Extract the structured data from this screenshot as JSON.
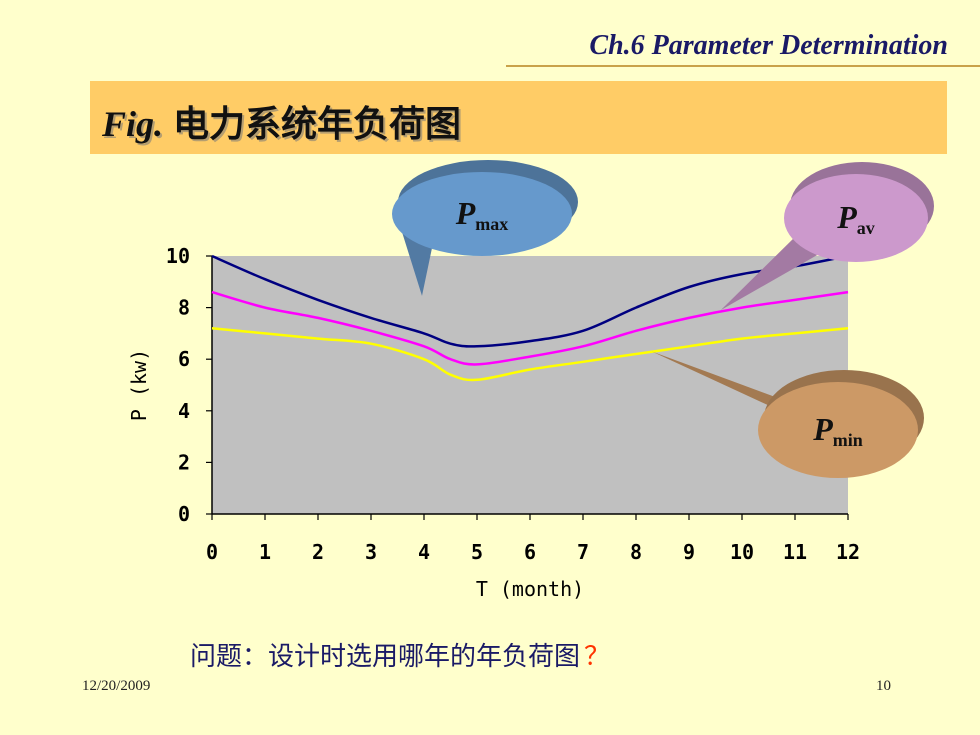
{
  "header": {
    "title": "Ch.6  Parameter Determination"
  },
  "title_band": {
    "fig": "Fig.",
    "title_zh": "电力系统年负荷图"
  },
  "callouts": {
    "pmax": {
      "main": "P",
      "sub": "max",
      "color": "#6699CC"
    },
    "pav": {
      "main": "P",
      "sub": "av",
      "color": "#CC99CC"
    },
    "pmin": {
      "main": "P",
      "sub": "min",
      "color": "#CC9966"
    }
  },
  "chart_data": {
    "type": "line",
    "xlabel": "T (month)",
    "ylabel": "P (kw)",
    "xlim": [
      0,
      12
    ],
    "ylim": [
      0,
      10
    ],
    "x_ticks": [
      "0",
      "1",
      "2",
      "3",
      "4",
      "5",
      "6",
      "7",
      "8",
      "9",
      "10",
      "11",
      "12"
    ],
    "y_ticks": [
      "0",
      "2",
      "4",
      "6",
      "8",
      "10"
    ],
    "plot_background": "#C0C0C0",
    "series": [
      {
        "key": "pmax",
        "color": "#000080",
        "x": [
          0,
          1,
          2,
          3,
          4,
          4.5,
          5,
          6,
          7,
          8,
          9,
          10,
          11,
          12
        ],
        "y": [
          10.0,
          9.1,
          8.3,
          7.6,
          7.0,
          6.6,
          6.5,
          6.7,
          7.1,
          8.0,
          8.8,
          9.3,
          9.6,
          10.0
        ]
      },
      {
        "key": "pav",
        "color": "#FF00FF",
        "x": [
          0,
          1,
          2,
          3,
          4,
          4.5,
          5,
          6,
          7,
          8,
          9,
          10,
          11,
          12
        ],
        "y": [
          8.6,
          8.0,
          7.6,
          7.1,
          6.5,
          6.0,
          5.8,
          6.1,
          6.5,
          7.1,
          7.6,
          8.0,
          8.3,
          8.6
        ]
      },
      {
        "key": "pmin",
        "color": "#FFFF00",
        "x": [
          0,
          1,
          2,
          3,
          4,
          4.5,
          5,
          6,
          7,
          8,
          9,
          10,
          11,
          12
        ],
        "y": [
          7.2,
          7.0,
          6.8,
          6.6,
          6.0,
          5.4,
          5.2,
          5.6,
          5.9,
          6.2,
          6.5,
          6.8,
          7.0,
          7.2
        ]
      }
    ]
  },
  "question": {
    "text": "问题：设计时选用哪年的年负荷图",
    "mark": "？"
  },
  "footer": {
    "date": "12/20/2009",
    "page": "10"
  }
}
